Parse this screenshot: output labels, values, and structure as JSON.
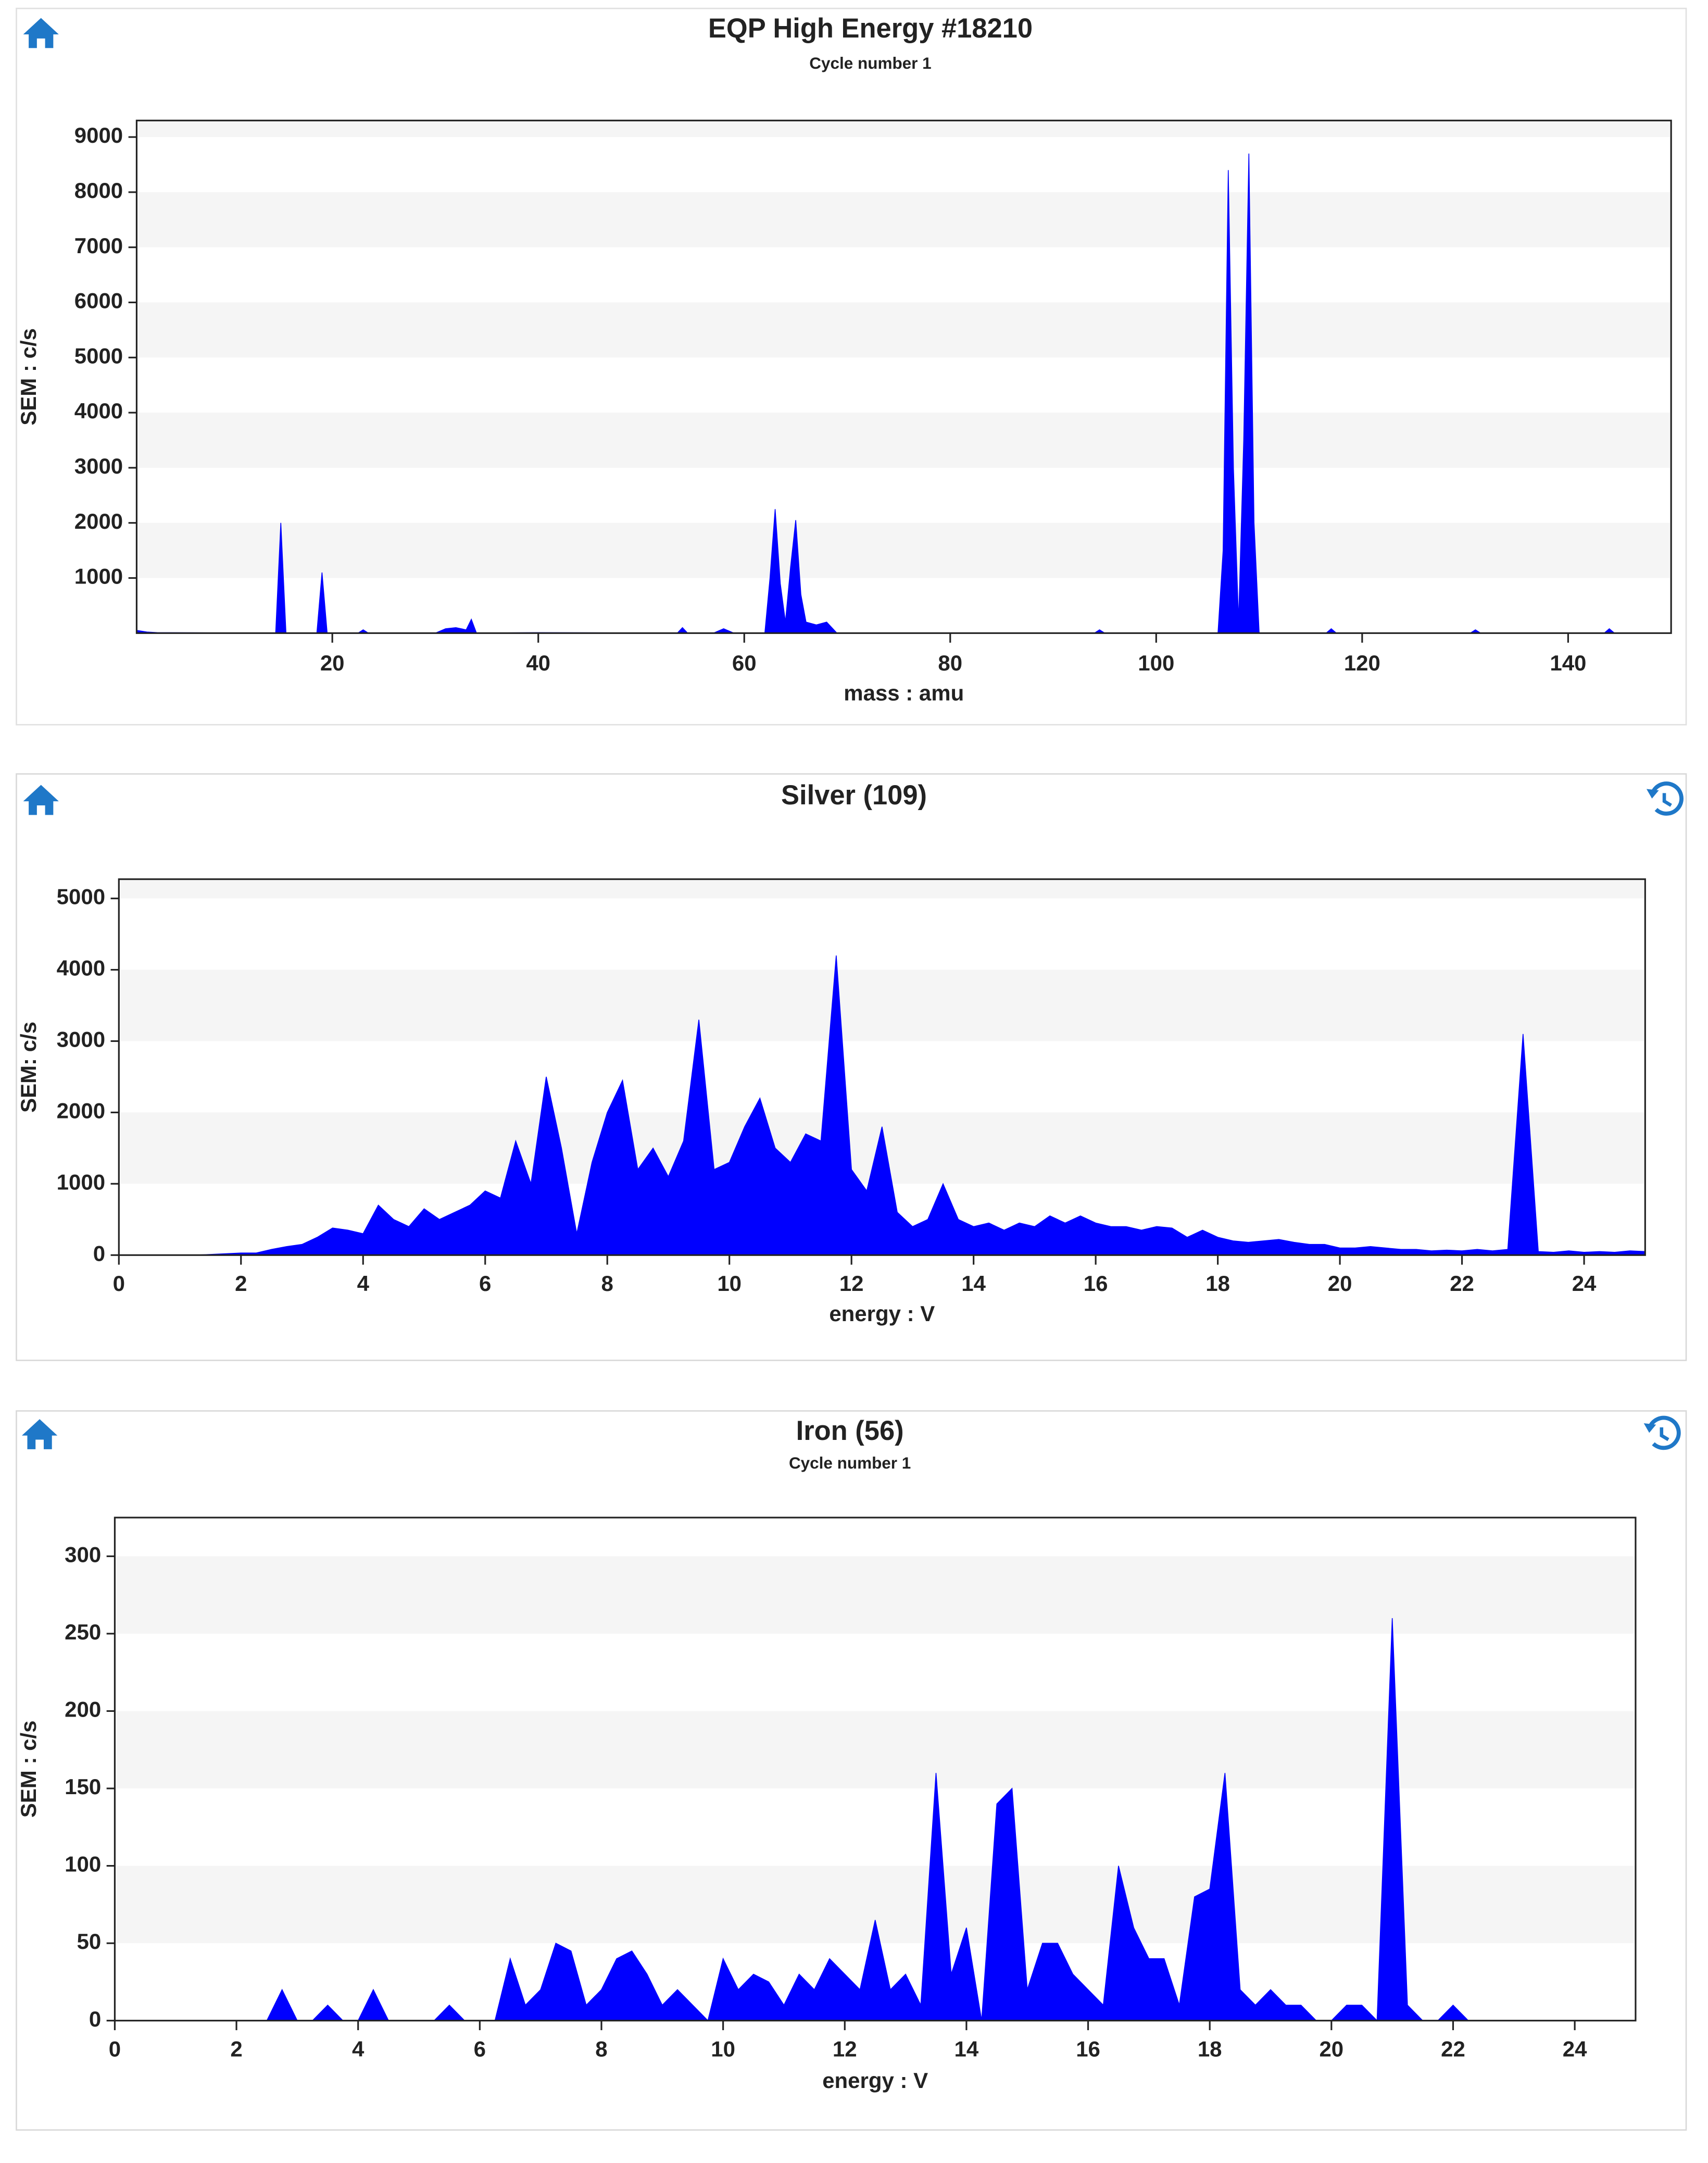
{
  "chart_data": [
    {
      "type": "area",
      "title": "EQP High Energy #18210",
      "subtitle": "Cycle number 1",
      "xlabel": "mass : amu",
      "ylabel": "SEM : c/s",
      "color": "#0000ff",
      "x": [
        1,
        2,
        3,
        14.5,
        15,
        15.5,
        18.5,
        19,
        19.5,
        22.5,
        23,
        23.5,
        30,
        31,
        32,
        33,
        33.5,
        34,
        40,
        53.5,
        54,
        54.5,
        57,
        58,
        59,
        62,
        62.5,
        63,
        63.5,
        64,
        64.5,
        65,
        65.5,
        66,
        67,
        68,
        69,
        94,
        94.5,
        95,
        106,
        106.5,
        107,
        107.5,
        108,
        108.5,
        109,
        109.5,
        110,
        116.5,
        117,
        117.5,
        130.5,
        131,
        131.5,
        143.5,
        144,
        144.5,
        150
      ],
      "values": [
        50,
        20,
        10,
        0,
        2000,
        0,
        0,
        1100,
        0,
        0,
        60,
        0,
        0,
        80,
        100,
        60,
        250,
        0,
        10,
        0,
        100,
        0,
        0,
        80,
        0,
        0,
        1000,
        2250,
        900,
        200,
        1200,
        2050,
        700,
        200,
        150,
        200,
        0,
        0,
        60,
        0,
        0,
        1500,
        8400,
        3000,
        200,
        3500,
        8700,
        2000,
        0,
        0,
        80,
        0,
        0,
        60,
        0,
        0,
        80,
        0,
        0
      ],
      "xlim": [
        1,
        150
      ],
      "xticks": [
        20,
        40,
        60,
        80,
        100,
        120,
        140
      ],
      "ylim": [
        0,
        9300
      ],
      "yticks": [
        1000,
        2000,
        3000,
        4000,
        5000,
        6000,
        7000,
        8000,
        9000
      ]
    },
    {
      "type": "area",
      "title": "Silver (109)",
      "xlabel": "energy : V",
      "ylabel": "SEM: c/s",
      "color": "#0000ff",
      "x": [
        0,
        0.25,
        0.5,
        0.75,
        1,
        1.25,
        1.5,
        1.75,
        2,
        2.25,
        2.5,
        2.75,
        3,
        3.25,
        3.5,
        3.75,
        4,
        4.25,
        4.5,
        4.75,
        5,
        5.25,
        5.5,
        5.75,
        6,
        6.25,
        6.5,
        6.75,
        7,
        7.25,
        7.5,
        7.75,
        8,
        8.25,
        8.5,
        8.75,
        9,
        9.25,
        9.5,
        9.75,
        10,
        10.25,
        10.5,
        10.75,
        11,
        11.25,
        11.5,
        11.75,
        12,
        12.25,
        12.5,
        12.75,
        13,
        13.25,
        13.5,
        13.75,
        14,
        14.25,
        14.5,
        14.75,
        15,
        15.25,
        15.5,
        15.75,
        16,
        16.25,
        16.5,
        16.75,
        17,
        17.25,
        17.5,
        17.75,
        18,
        18.25,
        18.5,
        18.75,
        19,
        19.25,
        19.5,
        19.75,
        20,
        20.25,
        20.5,
        20.75,
        21,
        21.25,
        21.5,
        21.75,
        22,
        22.25,
        22.5,
        22.75,
        23,
        23.25,
        23.5,
        23.75,
        24,
        24.25,
        24.5,
        24.75,
        25
      ],
      "values": [
        0,
        0,
        0,
        0,
        0,
        0,
        10,
        20,
        30,
        30,
        80,
        120,
        150,
        250,
        380,
        350,
        300,
        700,
        500,
        400,
        650,
        500,
        600,
        700,
        900,
        800,
        1600,
        1000,
        2500,
        1500,
        300,
        1300,
        2000,
        2450,
        1200,
        1500,
        1100,
        1600,
        3300,
        1200,
        1300,
        1800,
        2200,
        1500,
        1300,
        1700,
        1600,
        4200,
        1200,
        900,
        1800,
        600,
        400,
        500,
        1000,
        500,
        400,
        450,
        350,
        450,
        400,
        550,
        450,
        550,
        450,
        400,
        400,
        350,
        400,
        380,
        250,
        350,
        250,
        200,
        180,
        200,
        220,
        180,
        150,
        150,
        100,
        100,
        120,
        100,
        80,
        80,
        60,
        70,
        60,
        80,
        60,
        80,
        3100,
        50,
        40,
        60,
        40,
        50,
        40,
        60,
        50
      ],
      "xlim": [
        0,
        25
      ],
      "xticks": [
        0,
        2,
        4,
        6,
        8,
        10,
        12,
        14,
        16,
        18,
        20,
        22,
        24
      ],
      "ylim": [
        0,
        5270
      ],
      "yticks": [
        0,
        1000,
        2000,
        3000,
        4000,
        5000
      ]
    },
    {
      "type": "area",
      "title": "Iron (56)",
      "subtitle": "Cycle number 1",
      "xlabel": "energy : V",
      "ylabel": "SEM : c/s",
      "color": "#0000ff",
      "x": [
        0,
        0.25,
        0.5,
        0.75,
        1,
        1.25,
        1.5,
        1.75,
        2,
        2.25,
        2.5,
        2.75,
        3,
        3.25,
        3.5,
        3.75,
        4,
        4.25,
        4.5,
        4.75,
        5,
        5.25,
        5.5,
        5.75,
        6,
        6.25,
        6.5,
        6.75,
        7,
        7.25,
        7.5,
        7.75,
        8,
        8.25,
        8.5,
        8.75,
        9,
        9.25,
        9.5,
        9.75,
        10,
        10.25,
        10.5,
        10.75,
        11,
        11.25,
        11.5,
        11.75,
        12,
        12.25,
        12.5,
        12.75,
        13,
        13.25,
        13.5,
        13.75,
        14,
        14.25,
        14.5,
        14.75,
        15,
        15.25,
        15.5,
        15.75,
        16,
        16.25,
        16.5,
        16.75,
        17,
        17.25,
        17.5,
        17.75,
        18,
        18.25,
        18.5,
        18.75,
        19,
        19.25,
        19.5,
        19.75,
        20,
        20.25,
        20.5,
        20.75,
        21,
        21.25,
        21.5,
        21.75,
        22,
        22.25,
        22.5,
        22.75,
        23,
        23.25,
        23.5,
        23.75,
        24,
        24.25,
        24.5,
        24.75,
        25
      ],
      "values": [
        0,
        0,
        0,
        0,
        0,
        0,
        0,
        0,
        0,
        0,
        0,
        20,
        0,
        0,
        10,
        0,
        0,
        20,
        0,
        0,
        0,
        0,
        10,
        0,
        0,
        0,
        40,
        10,
        20,
        50,
        45,
        10,
        20,
        40,
        45,
        30,
        10,
        20,
        10,
        0,
        40,
        20,
        30,
        25,
        10,
        30,
        20,
        40,
        30,
        20,
        65,
        20,
        30,
        10,
        160,
        30,
        60,
        0,
        140,
        150,
        20,
        50,
        50,
        30,
        20,
        10,
        100,
        60,
        40,
        40,
        10,
        80,
        85,
        160,
        20,
        10,
        20,
        10,
        10,
        0,
        0,
        10,
        10,
        0,
        260,
        10,
        0,
        0,
        10,
        0,
        0,
        0,
        0,
        0,
        0,
        0,
        0,
        0,
        0,
        0,
        0
      ],
      "xlim": [
        0,
        25
      ],
      "xticks": [
        0,
        2,
        4,
        6,
        8,
        10,
        12,
        14,
        16,
        18,
        20,
        22,
        24
      ],
      "ylim": [
        0,
        325
      ],
      "yticks": [
        0,
        50,
        100,
        150,
        200,
        250,
        300
      ]
    }
  ]
}
